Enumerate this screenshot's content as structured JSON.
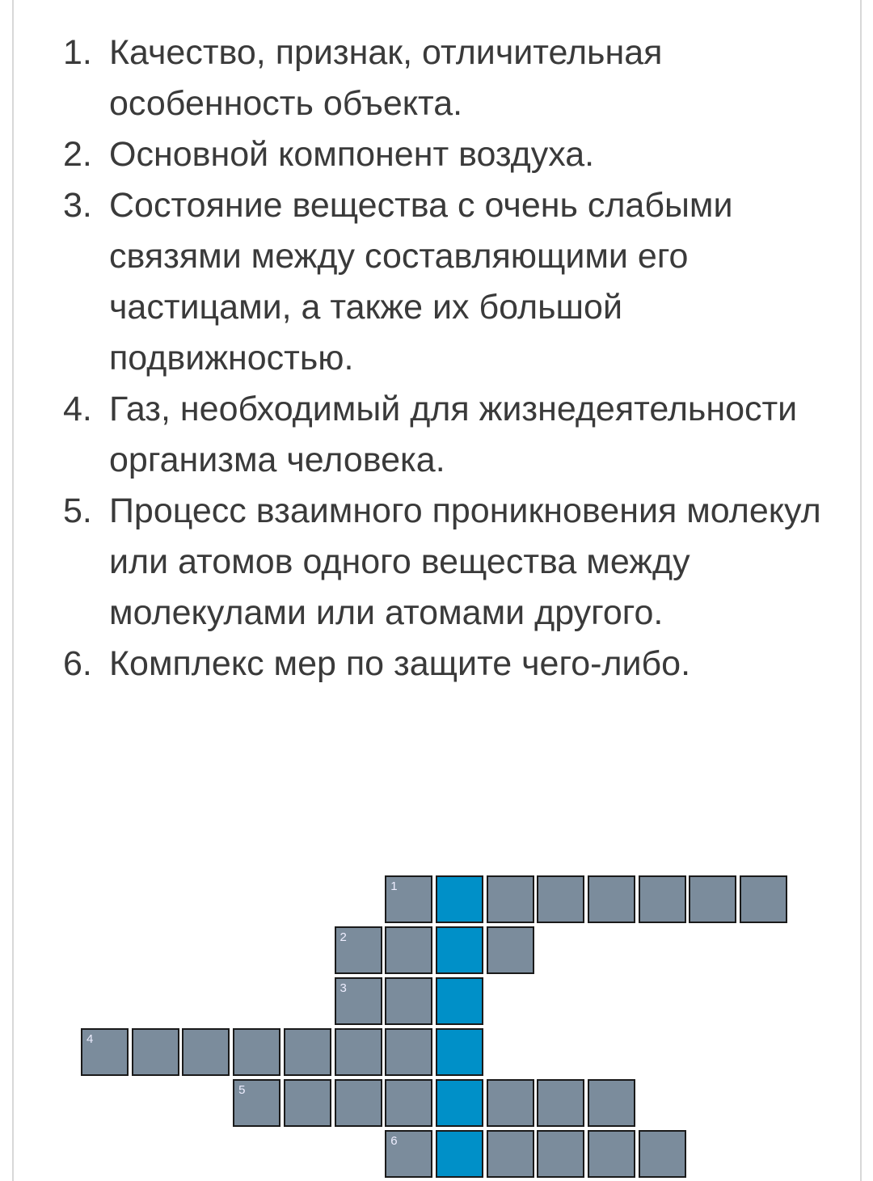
{
  "clues": [
    {
      "number": "1.",
      "text": "Качество, признак, отличительная особенность объекта."
    },
    {
      "number": "2.",
      "text": "Основной компонент воздуха."
    },
    {
      "number": "3.",
      "text": "Состояние вещества с очень слабыми связями между составляющими его частицами, а также их большой подвижностью."
    },
    {
      "number": "4.",
      "text": "Газ, необходимый для жизнедеятельности организма человека."
    },
    {
      "number": "5.",
      "text": "Процесс взаимного проникновения молекул или атомов одного вещества между молекулами или атомами другого."
    },
    {
      "number": "6.",
      "text": "Комплекс мер по защите чего-либо."
    }
  ],
  "crossword": {
    "cell_color": "#7b8c9c",
    "highlight_color": "#0090c8",
    "highlight_column": 7,
    "rows": [
      {
        "label": "1",
        "start_col": 6,
        "length": 8
      },
      {
        "label": "2",
        "start_col": 5,
        "length": 4
      },
      {
        "label": "3",
        "start_col": 5,
        "length": 3
      },
      {
        "label": "4",
        "start_col": 0,
        "length": 8
      },
      {
        "label": "5",
        "start_col": 3,
        "length": 8
      },
      {
        "label": "6",
        "start_col": 6,
        "length": 6
      }
    ]
  }
}
